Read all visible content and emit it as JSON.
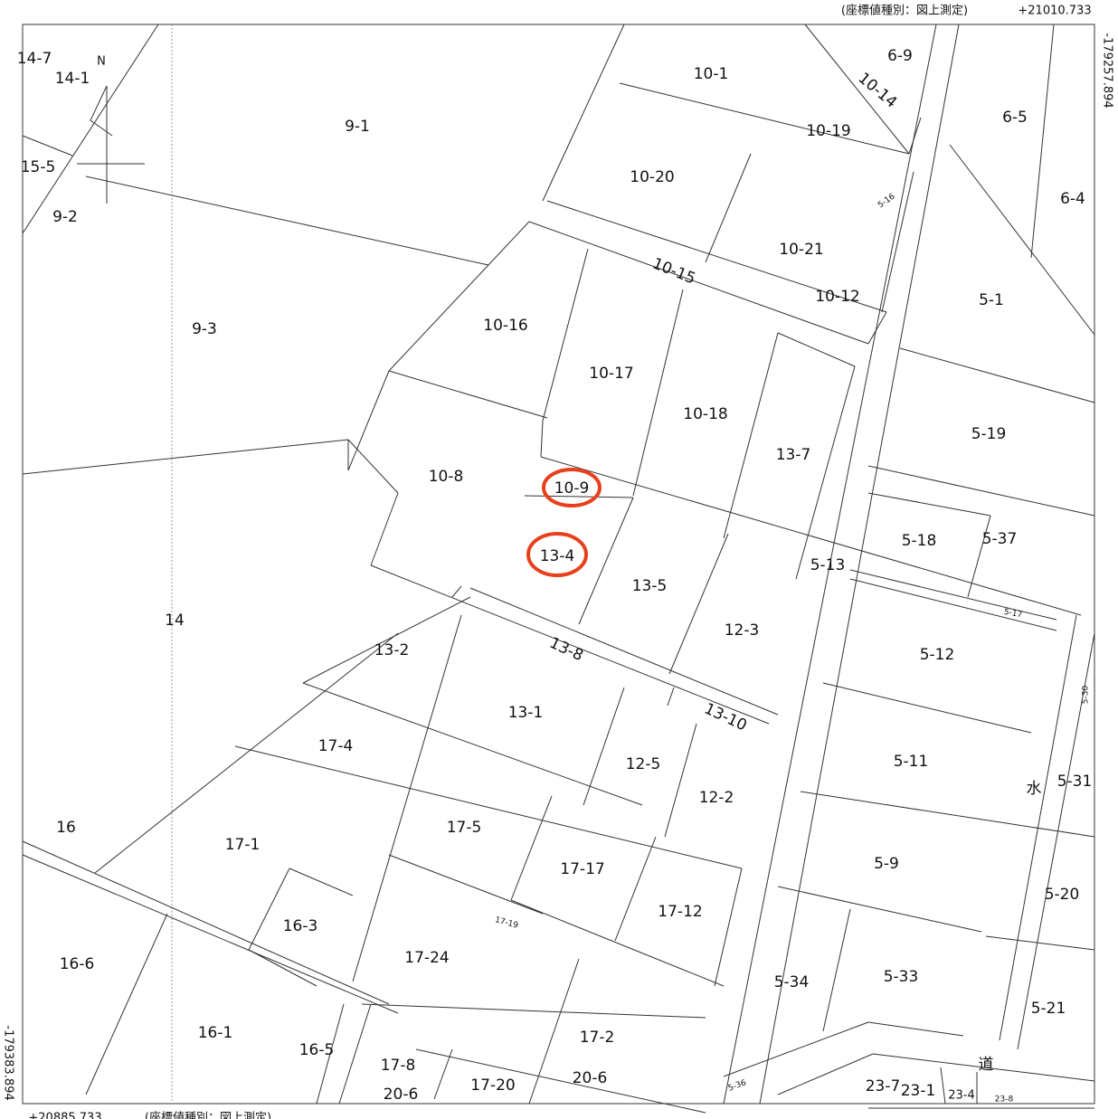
{
  "header": {
    "coord_type": "(座標値種別：図上測定)",
    "top_right_x": "+21010.733",
    "right_y": "-179257.894",
    "left_y": "-179383.894",
    "bottom_left_x": "+20885.733",
    "bottom_coord_type": "(座標値種別：図上測定)"
  },
  "north": "N",
  "parcels": [
    "14-7",
    "14-1",
    "9-1",
    "15-5",
    "9-2",
    "9-3",
    "10-1",
    "6-9",
    "10-14",
    "6-5",
    "10-19",
    "10-20",
    "5-16",
    "6-4",
    "10-21",
    "10-15",
    "10-12",
    "5-1",
    "10-16",
    "10-17",
    "10-18",
    "5-19",
    "13-7",
    "10-8",
    "10-9",
    "5-18",
    "5-37",
    "13-4",
    "5-13",
    "13-5",
    "5-17",
    "12-3",
    "14",
    "13-2",
    "13-8",
    "5-12",
    "5-30",
    "13-1",
    "13-10",
    "17-4",
    "5-11",
    "12-5",
    "水",
    "5-31",
    "12-2",
    "16",
    "17-5",
    "17-1",
    "5-9",
    "17-17",
    "5-20",
    "17-12",
    "17-19",
    "16-3",
    "16-6",
    "17-24",
    "5-34",
    "5-33",
    "5-21",
    "16-1",
    "17-2",
    "16-5",
    "道",
    "17-8",
    "23-7",
    "23-1",
    "17-20",
    "20-6",
    "5-36",
    "20-6",
    "23-4",
    "23-8"
  ]
}
